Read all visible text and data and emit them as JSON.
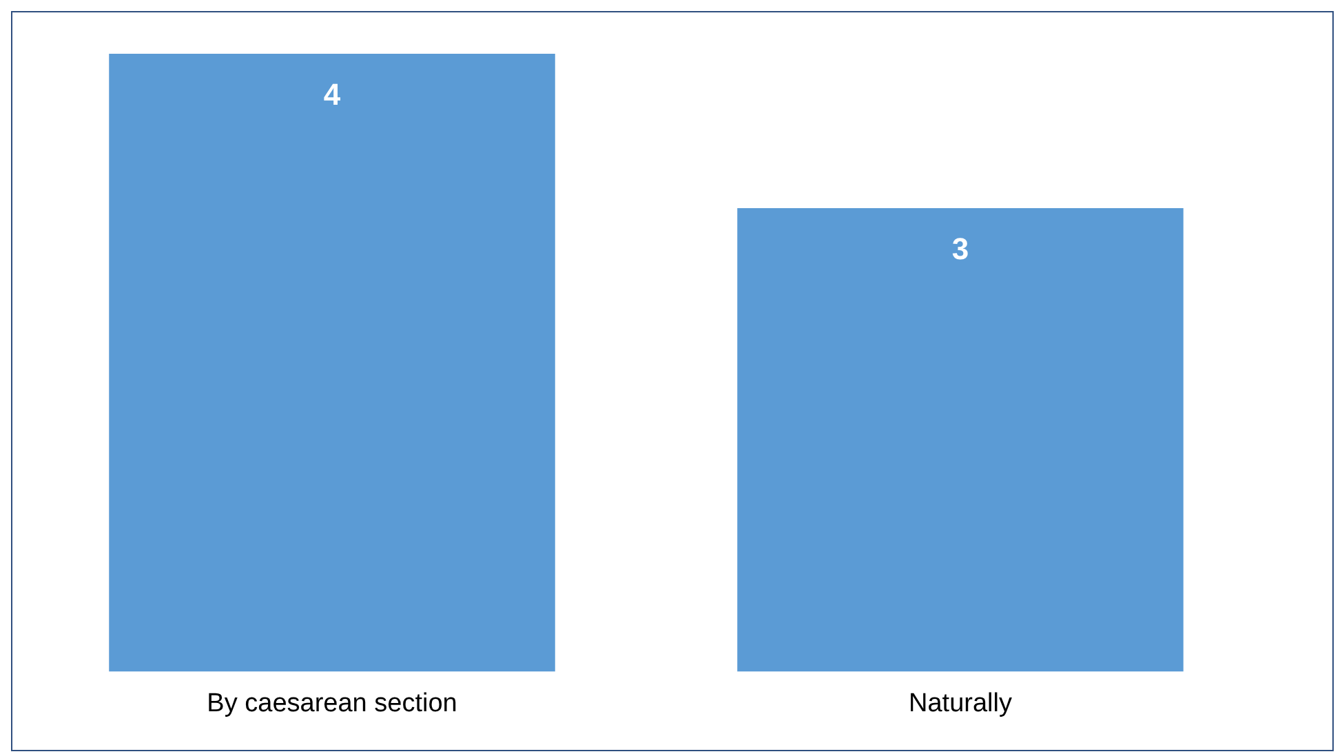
{
  "chart_data": {
    "type": "bar",
    "categories": [
      "By caesarean section",
      "Naturally"
    ],
    "values": [
      4,
      3
    ],
    "color": "#5b9bd5",
    "data_labels": true,
    "legend": false,
    "grid": false
  }
}
